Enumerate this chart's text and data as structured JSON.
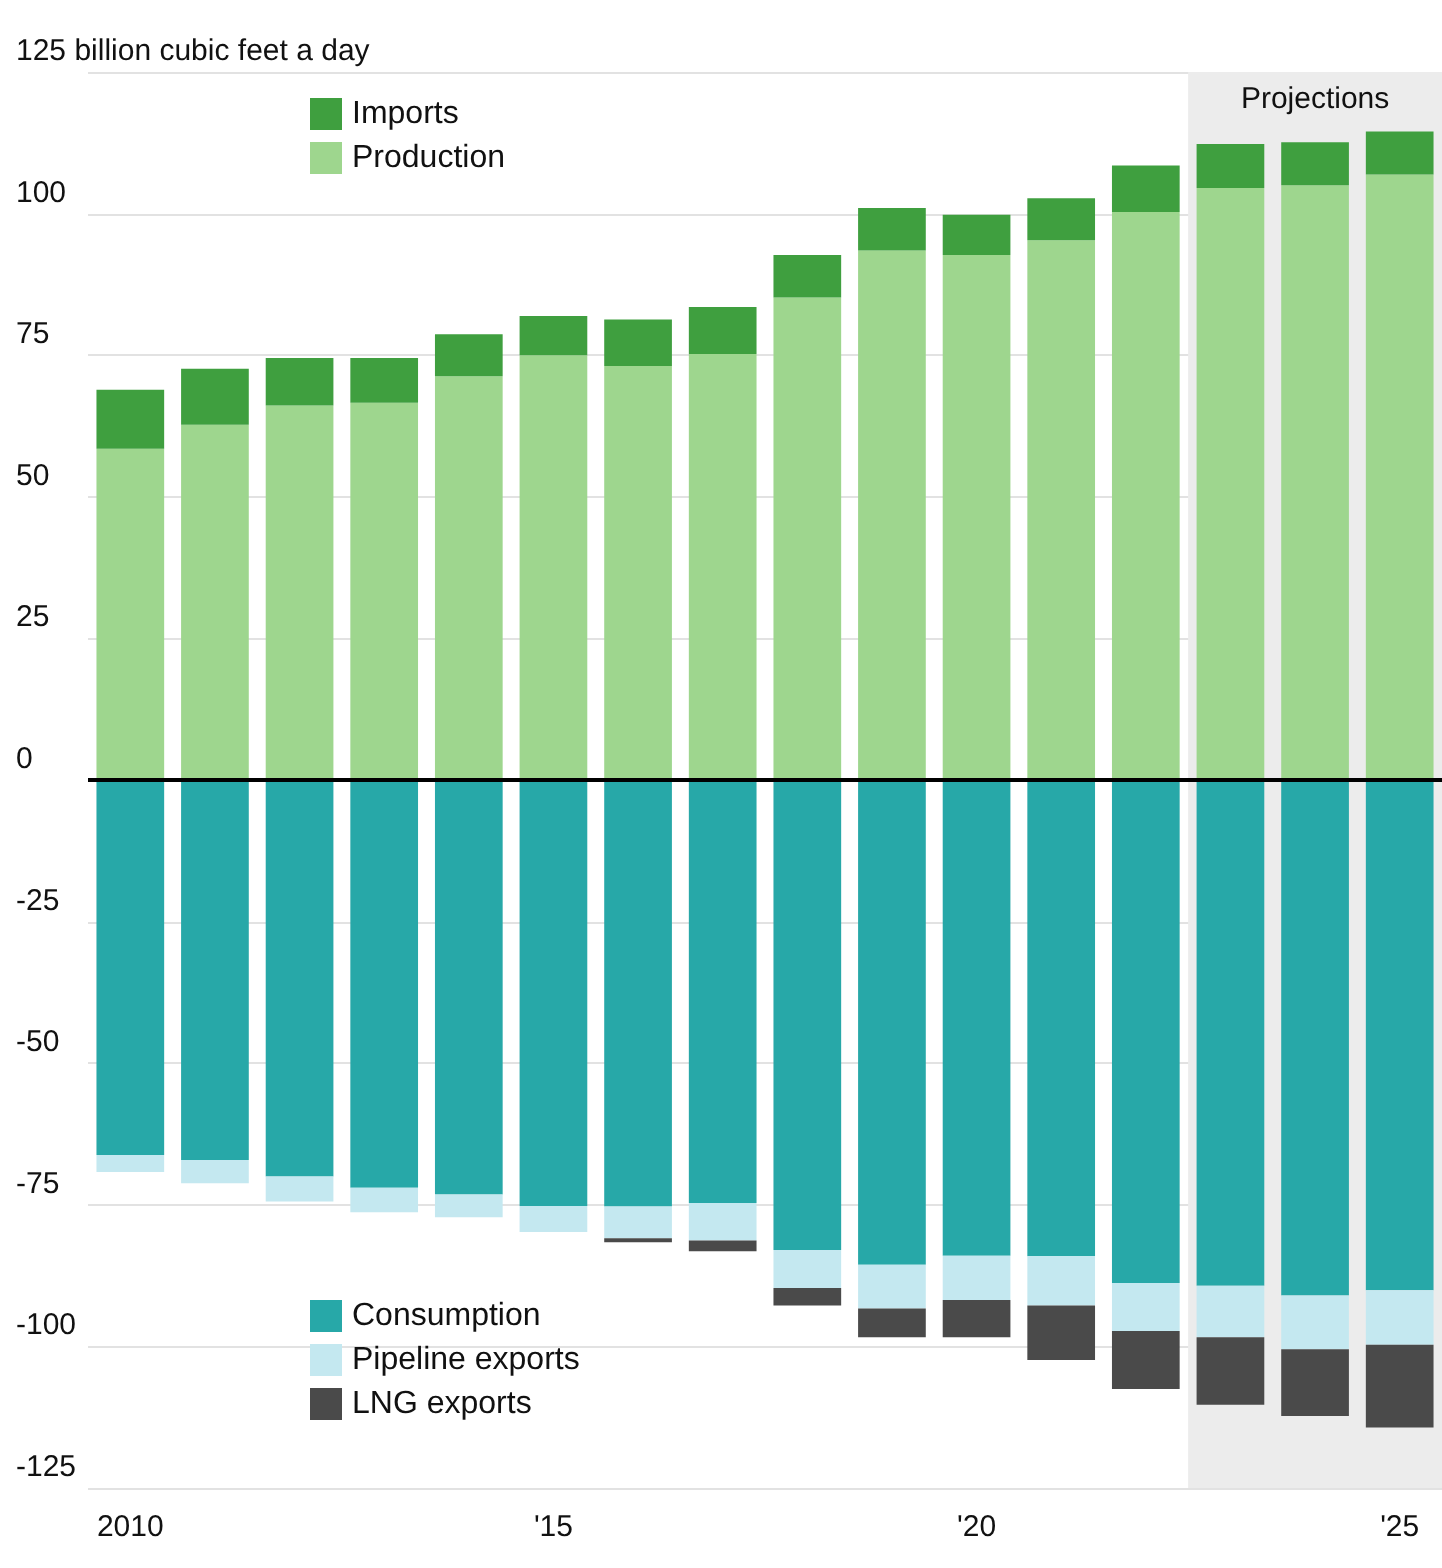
{
  "chart_data": {
    "type": "bar",
    "stacked": true,
    "x": [
      2010,
      2011,
      2012,
      2013,
      2014,
      2015,
      2016,
      2017,
      2018,
      2019,
      2020,
      2021,
      2022,
      2023,
      2024,
      2025
    ],
    "series": [
      {
        "name": "Production",
        "color": "#9ed68e",
        "values": [
          58.5,
          62.7,
          66.1,
          66.6,
          71.3,
          75.0,
          73.1,
          75.2,
          85.2,
          93.5,
          92.7,
          95.3,
          100.3,
          104.5,
          105.0,
          106.9
        ]
      },
      {
        "name": "Imports",
        "color": "#3f9f3f",
        "values": [
          10.4,
          9.9,
          8.4,
          7.9,
          7.4,
          6.9,
          8.2,
          8.3,
          7.5,
          7.5,
          7.1,
          7.4,
          8.2,
          7.8,
          7.6,
          7.6
        ]
      },
      {
        "name": "Consumption",
        "color": "#27a8a8",
        "values": [
          -66.2,
          -67.1,
          -70.0,
          -72.0,
          -73.2,
          -75.2,
          -75.3,
          -74.7,
          -83.0,
          -85.6,
          -84.0,
          -84.1,
          -88.8,
          -89.3,
          -91.0,
          -90.1
        ]
      },
      {
        "name": "Pipeline exports",
        "color": "#c4e8f0",
        "values": [
          -3.0,
          -4.1,
          -4.4,
          -4.3,
          -4.0,
          -4.6,
          -5.6,
          -6.6,
          -6.7,
          -7.7,
          -7.8,
          -8.7,
          -8.5,
          -9.1,
          -9.5,
          -9.6
        ]
      },
      {
        "name": "LNG exports",
        "color": "#4a4a4a",
        "values": [
          null,
          null,
          null,
          null,
          null,
          null,
          -0.7,
          -1.9,
          -3.1,
          -5.1,
          -6.6,
          -9.6,
          -10.2,
          -11.9,
          -11.8,
          -14.6
        ]
      }
    ],
    "xlim": [
      2009.5,
      2025.5
    ],
    "xticks": [
      {
        "value": 2010,
        "label": "2010"
      },
      {
        "value": 2011,
        "label": null
      },
      {
        "value": 2012,
        "label": null
      },
      {
        "value": 2013,
        "label": null
      },
      {
        "value": 2014,
        "label": null
      },
      {
        "value": 2015,
        "label": "'15"
      },
      {
        "value": 2016,
        "label": null
      },
      {
        "value": 2017,
        "label": null
      },
      {
        "value": 2018,
        "label": null
      },
      {
        "value": 2019,
        "label": null
      },
      {
        "value": 2020,
        "label": "'20"
      },
      {
        "value": 2021,
        "label": null
      },
      {
        "value": 2022,
        "label": null
      },
      {
        "value": 2023,
        "label": null
      },
      {
        "value": 2024,
        "label": null
      },
      {
        "value": 2025,
        "label": "'25"
      }
    ],
    "ylim": [
      -125,
      125
    ],
    "yticks": [
      -125,
      -100,
      -75,
      -50,
      -25,
      0,
      25,
      50,
      75,
      100,
      {
        "value": 125,
        "label": "125 billion cubic feet a day"
      }
    ],
    "bands": [
      {
        "axis": "x",
        "from": 2022.5,
        "to": 2025.5,
        "label": "Projections",
        "color": "#ececec"
      }
    ],
    "ref_lines": [
      {
        "axis": "y",
        "value": 0,
        "color": "#000000"
      }
    ],
    "grid": "y",
    "legend": "left"
  }
}
